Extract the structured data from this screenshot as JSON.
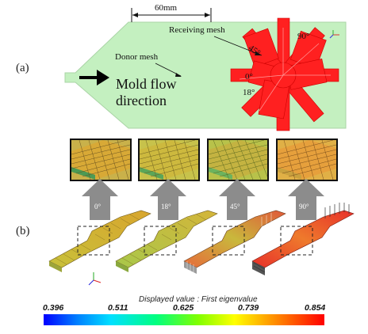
{
  "panel_a": {
    "label": "(a)",
    "dimension": "60mm",
    "receiving_mesh": "Receiving mesh",
    "donor_mesh": "Donor mesh",
    "flow_direction": [
      "Mold flow",
      "direction"
    ],
    "angles": [
      "90°",
      "45°",
      "0°",
      "18°"
    ]
  },
  "panel_b": {
    "label": "(b)",
    "arrow_labels": [
      "0°",
      "18°",
      "45°",
      "90°"
    ]
  },
  "legend": {
    "title": "Displayed value : First eigenvalue",
    "ticks": [
      "0.396",
      "0.511",
      "0.625",
      "0.739",
      "0.854"
    ]
  },
  "colors": {
    "plate": "#c4f0c0",
    "receiving_mesh": "#ff1a1a",
    "arrow_gray": "#8a8a8a"
  },
  "icons": [
    "axis-triad-icon",
    "flow-arrow-icon"
  ]
}
